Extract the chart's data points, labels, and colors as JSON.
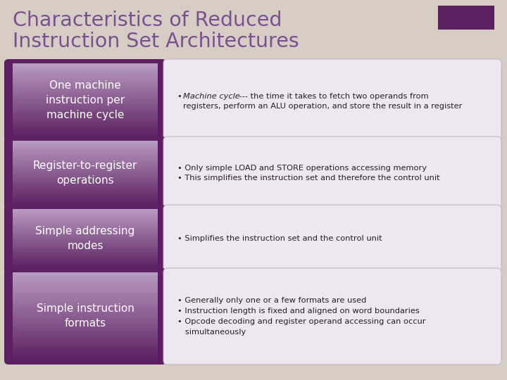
{
  "title_line1": "Characteristics of Reduced",
  "title_line2": "Instruction Set Architectures",
  "title_color": "#7a5090",
  "bg_color": "#d6cec4",
  "accent_rect_color": "#5a2060",
  "rows": [
    {
      "left_label": "One machine\ninstruction per\nmachine cycle",
      "right_text_parts": [
        {
          "text": "• ",
          "italic": false
        },
        {
          "text": "Machine cycle",
          "italic": true
        },
        {
          "text": " --- the time it takes to fetch two operands from\n   registers, perform an ALU operation, and store the result in a register",
          "italic": false
        }
      ]
    },
    {
      "left_label": "Register-to-register\noperations",
      "right_text_parts": [
        {
          "text": "• Only simple LOAD and STORE operations accessing memory\n• This simplifies the instruction set and therefore the control unit",
          "italic": false
        }
      ]
    },
    {
      "left_label": "Simple addressing\nmodes",
      "right_text_parts": [
        {
          "text": "• Simplifies the instruction set and the control unit",
          "italic": false
        }
      ]
    },
    {
      "left_label": "Simple instruction\nformats",
      "right_text_parts": [
        {
          "text": "• Generally only one or a few formats are used\n• Instruction length is fixed and aligned on word boundaries\n• Opcode decoding and register operand accessing can occur\n   simultaneously",
          "italic": false
        }
      ]
    }
  ],
  "left_box_dark": "#5c2060",
  "left_box_light": "#b898c0",
  "right_box_fill": "#ede8f0",
  "right_box_edge": "#c0b0cc",
  "text_right": "#2a1a2a"
}
